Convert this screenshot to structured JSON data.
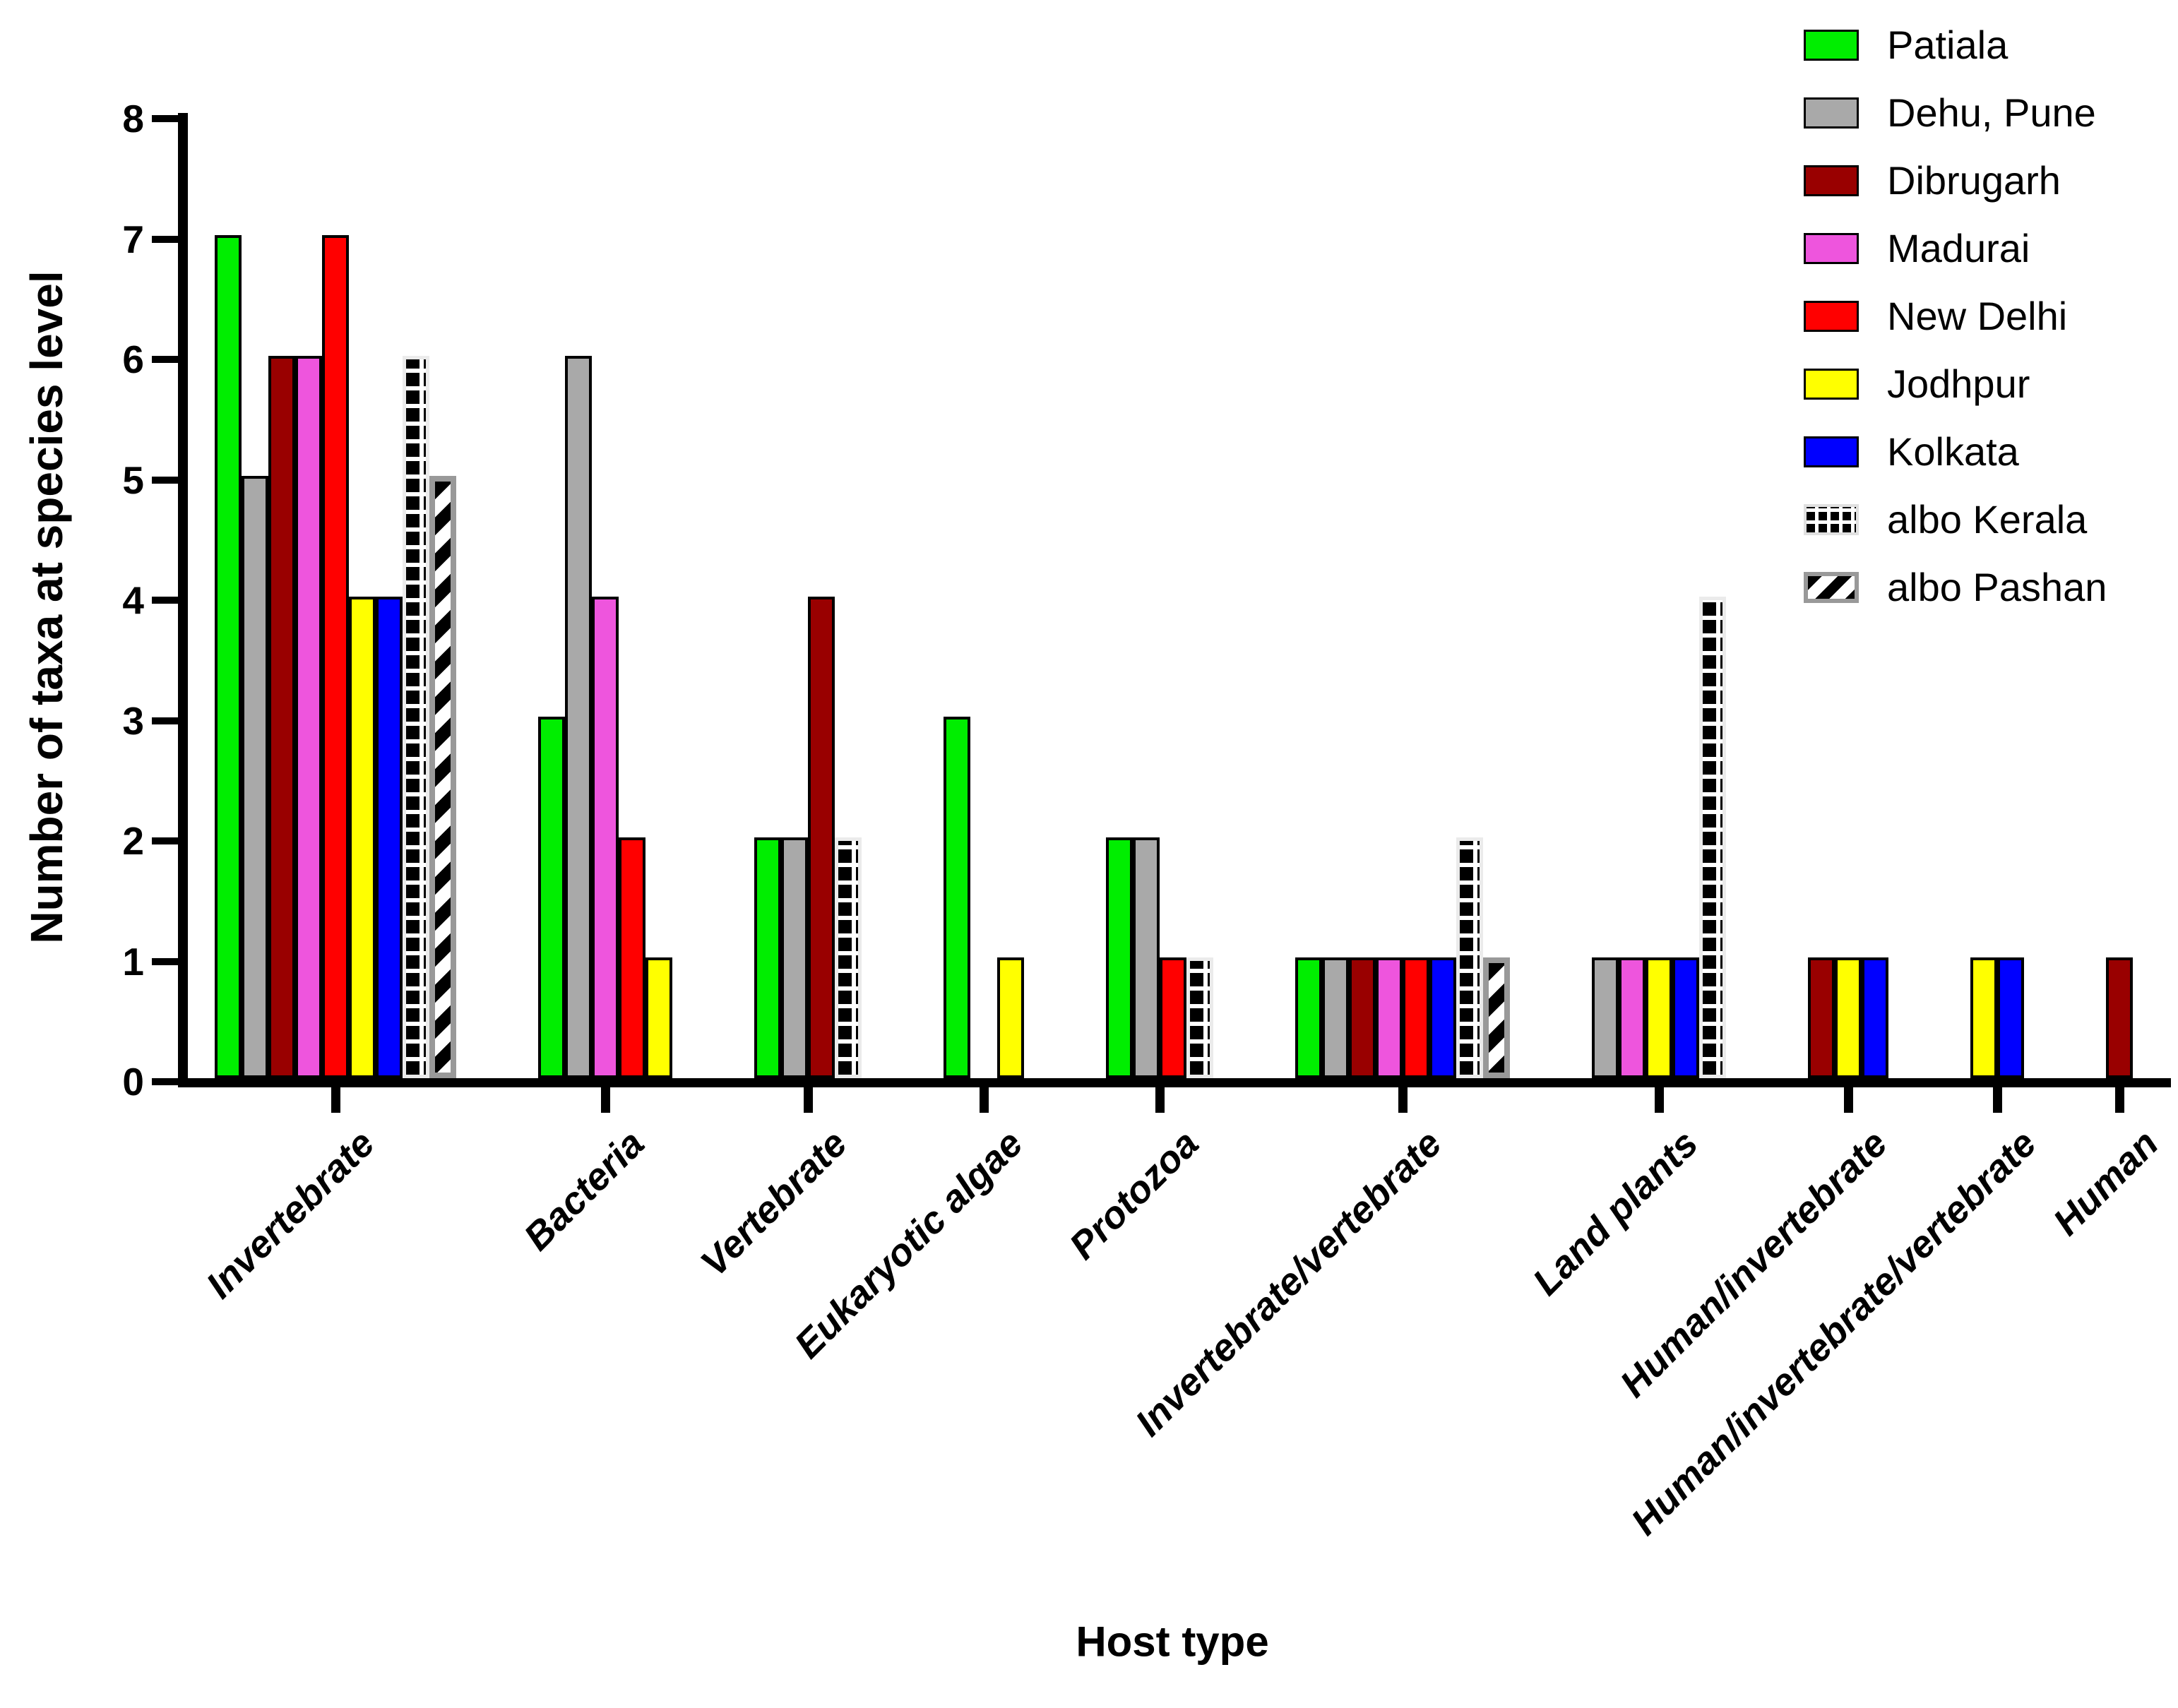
{
  "figure": {
    "background": "#FFFFFF"
  },
  "chart_data": {
    "type": "bar",
    "title": "",
    "xlabel": "Host type",
    "ylabel": "Number of taxa at species level",
    "ylim": [
      0,
      8
    ],
    "yticks": [
      0,
      1,
      2,
      3,
      4,
      5,
      6,
      7,
      8
    ],
    "grid": false,
    "legend_position": "top-right",
    "categories": [
      "Invertebrate",
      "Bacteria",
      "Vertebrate",
      "Eukaryotic algae",
      "Protozoa",
      "Invertebrate/vertebrate",
      "Land plants",
      "Human/invertebrate",
      "Human/invertebrate/vertebrate",
      "Human"
    ],
    "series": [
      {
        "name": "Patiala",
        "pattern": "solid",
        "color": "#00EE00",
        "values": [
          7,
          3,
          2,
          3,
          2,
          1,
          0,
          0,
          0,
          0
        ]
      },
      {
        "name": "Dehu, Pune",
        "pattern": "solid",
        "color": "#A9A9A9",
        "values": [
          5,
          6,
          2,
          null,
          2,
          1,
          1,
          0,
          0,
          0
        ]
      },
      {
        "name": "Dibrugarh",
        "pattern": "solid",
        "color": "#990000",
        "values": [
          6,
          0,
          4,
          0,
          0,
          1,
          0,
          1,
          0,
          1
        ]
      },
      {
        "name": "Madurai",
        "pattern": "solid",
        "color": "#EE55DD",
        "values": [
          6,
          4,
          0,
          0,
          0,
          1,
          1,
          0,
          0,
          0
        ]
      },
      {
        "name": "New Delhi",
        "pattern": "solid",
        "color": "#FF0000",
        "values": [
          7,
          2,
          0,
          0,
          1,
          1,
          0,
          0,
          0,
          0
        ]
      },
      {
        "name": "Jodhpur",
        "pattern": "solid",
        "color": "#FFFF00",
        "values": [
          4,
          1,
          0,
          1,
          0,
          0,
          1,
          1,
          1,
          0
        ]
      },
      {
        "name": "Kolkata",
        "pattern": "solid",
        "color": "#0000FF",
        "values": [
          4,
          0,
          0,
          0,
          0,
          1,
          1,
          1,
          1,
          0
        ]
      },
      {
        "name": "albo Kerala",
        "pattern": "checker",
        "color": "#000000",
        "values": [
          6,
          0,
          2,
          0,
          1,
          2,
          4,
          0,
          0,
          0
        ]
      },
      {
        "name": "albo Pashan",
        "pattern": "diagonal",
        "color": "#000000",
        "values": [
          5,
          0,
          0,
          0,
          0,
          1,
          0,
          0,
          0,
          0
        ]
      }
    ]
  }
}
